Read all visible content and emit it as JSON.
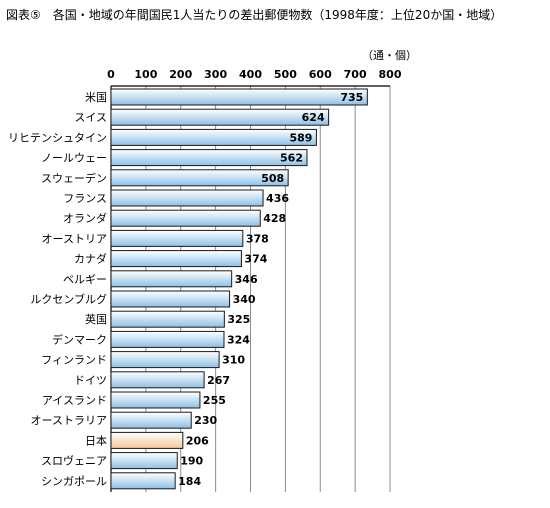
{
  "chart_data": {
    "type": "bar",
    "orientation": "horizontal",
    "title": "図表⑤　各国・地域の年間国民1人当たりの差出郵便物数（1998年度：上位20か国・地域）",
    "unit": "（通・個）",
    "xlim": [
      0,
      800
    ],
    "ticks": [
      0,
      100,
      200,
      300,
      400,
      500,
      600,
      700,
      800
    ],
    "grid": true,
    "categories": [
      "米国",
      "スイス",
      "リヒテンシュタイン",
      "ノールウェー",
      "スウェーデン",
      "フランス",
      "オランダ",
      "オーストリア",
      "カナダ",
      "ベルギー",
      "ルクセンブルグ",
      "英国",
      "デンマーク",
      "フィンランド",
      "ドイツ",
      "アイスランド",
      "オーストラリア",
      "日本",
      "スロヴェニア",
      "シンガポール"
    ],
    "values": [
      735,
      624,
      589,
      562,
      508,
      436,
      428,
      378,
      374,
      346,
      340,
      325,
      324,
      310,
      267,
      255,
      230,
      206,
      190,
      184
    ],
    "highlight_category": "日本",
    "colors": {
      "bar_top": "#ffffff",
      "bar_bottom": "#8ec0e6",
      "highlight_top": "#ffffff",
      "highlight_bottom": "#f6c79e",
      "bar_border": "#1a1a1a",
      "grid": "#8c8c8c"
    }
  }
}
